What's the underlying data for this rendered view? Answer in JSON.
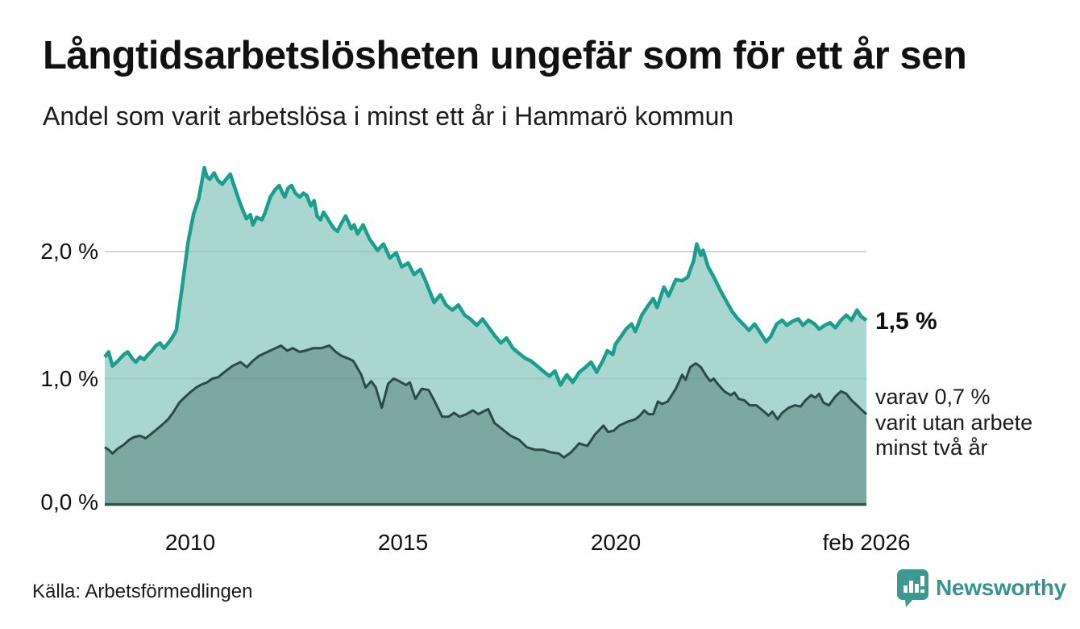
{
  "header": {
    "title": "Långtidsarbetslösheten ungefär som för ett år sen",
    "subtitle": "Andel som varit arbetslösa i minst ett år i Hammarö kommun"
  },
  "chart_data": {
    "type": "area",
    "title": "Långtidsarbetslösheten ungefär som för ett år sen",
    "subtitle": "Andel som varit arbetslösa i minst ett år i Hammarö kommun",
    "x_domain": [
      2008.0,
      2025.9
    ],
    "y_domain": [
      0,
      2.743
    ],
    "grid": "horizontal",
    "y_ticks": [
      {
        "value": 0.0,
        "label": "0,0 %"
      },
      {
        "value": 1.0,
        "label": "1,0 %"
      },
      {
        "value": 2.0,
        "label": "2,0 %"
      }
    ],
    "x_ticks": [
      {
        "value": 2010,
        "label": "2010"
      },
      {
        "value": 2015,
        "label": "2015"
      },
      {
        "value": 2020,
        "label": "2020"
      },
      {
        "value": 2025.9,
        "label": "feb 2026"
      }
    ],
    "colors": {
      "line_1yr": "#1b9e8e",
      "fill_1yr": "#a9d6d0",
      "line_2yr": "#2c4a46",
      "fill_2yr": "#7da8a2",
      "baseline": "#35514c",
      "gridline": "#e3e3e3"
    },
    "series": [
      {
        "name": "arbetslösa minst ett år",
        "last_value_pct": 1.5,
        "points": [
          [
            2008.0,
            1.17
          ],
          [
            2008.09,
            1.21
          ],
          [
            2008.18,
            1.1
          ],
          [
            2008.31,
            1.14
          ],
          [
            2008.45,
            1.19
          ],
          [
            2008.54,
            1.21
          ],
          [
            2008.64,
            1.16
          ],
          [
            2008.73,
            1.13
          ],
          [
            2008.83,
            1.17
          ],
          [
            2008.92,
            1.15
          ],
          [
            2009.02,
            1.19
          ],
          [
            2009.11,
            1.22
          ],
          [
            2009.2,
            1.26
          ],
          [
            2009.3,
            1.28
          ],
          [
            2009.39,
            1.24
          ],
          [
            2009.49,
            1.28
          ],
          [
            2009.58,
            1.32
          ],
          [
            2009.68,
            1.38
          ],
          [
            2009.83,
            1.75
          ],
          [
            2009.96,
            2.08
          ],
          [
            2010.09,
            2.3
          ],
          [
            2010.21,
            2.42
          ],
          [
            2010.28,
            2.55
          ],
          [
            2010.34,
            2.66
          ],
          [
            2010.4,
            2.59
          ],
          [
            2010.47,
            2.57
          ],
          [
            2010.57,
            2.62
          ],
          [
            2010.66,
            2.56
          ],
          [
            2010.76,
            2.53
          ],
          [
            2010.85,
            2.57
          ],
          [
            2010.95,
            2.61
          ],
          [
            2011.06,
            2.5
          ],
          [
            2011.16,
            2.4
          ],
          [
            2011.25,
            2.32
          ],
          [
            2011.33,
            2.26
          ],
          [
            2011.42,
            2.29
          ],
          [
            2011.48,
            2.21
          ],
          [
            2011.57,
            2.27
          ],
          [
            2011.69,
            2.25
          ],
          [
            2011.76,
            2.3
          ],
          [
            2011.89,
            2.43
          ],
          [
            2012.01,
            2.49
          ],
          [
            2012.1,
            2.52
          ],
          [
            2012.18,
            2.46
          ],
          [
            2012.23,
            2.43
          ],
          [
            2012.31,
            2.5
          ],
          [
            2012.39,
            2.52
          ],
          [
            2012.48,
            2.46
          ],
          [
            2012.58,
            2.43
          ],
          [
            2012.67,
            2.46
          ],
          [
            2012.75,
            2.44
          ],
          [
            2012.84,
            2.36
          ],
          [
            2012.92,
            2.4
          ],
          [
            2012.99,
            2.28
          ],
          [
            2013.07,
            2.25
          ],
          [
            2013.14,
            2.31
          ],
          [
            2013.22,
            2.27
          ],
          [
            2013.31,
            2.22
          ],
          [
            2013.39,
            2.18
          ],
          [
            2013.47,
            2.16
          ],
          [
            2013.56,
            2.22
          ],
          [
            2013.66,
            2.28
          ],
          [
            2013.73,
            2.23
          ],
          [
            2013.79,
            2.18
          ],
          [
            2013.86,
            2.21
          ],
          [
            2013.94,
            2.14
          ],
          [
            2014.07,
            2.21
          ],
          [
            2014.22,
            2.1
          ],
          [
            2014.41,
            2.01
          ],
          [
            2014.55,
            2.06
          ],
          [
            2014.7,
            1.95
          ],
          [
            2014.85,
            1.99
          ],
          [
            2014.98,
            1.88
          ],
          [
            2015.13,
            1.91
          ],
          [
            2015.27,
            1.82
          ],
          [
            2015.42,
            1.86
          ],
          [
            2015.55,
            1.76
          ],
          [
            2015.74,
            1.6
          ],
          [
            2015.89,
            1.66
          ],
          [
            2016.02,
            1.58
          ],
          [
            2016.17,
            1.54
          ],
          [
            2016.31,
            1.58
          ],
          [
            2016.46,
            1.5
          ],
          [
            2016.59,
            1.47
          ],
          [
            2016.74,
            1.42
          ],
          [
            2016.88,
            1.47
          ],
          [
            2017.03,
            1.4
          ],
          [
            2017.16,
            1.34
          ],
          [
            2017.31,
            1.28
          ],
          [
            2017.44,
            1.32
          ],
          [
            2017.59,
            1.24
          ],
          [
            2017.73,
            1.2
          ],
          [
            2017.88,
            1.16
          ],
          [
            2018.01,
            1.14
          ],
          [
            2018.16,
            1.1
          ],
          [
            2018.3,
            1.06
          ],
          [
            2018.45,
            1.02
          ],
          [
            2018.58,
            1.06
          ],
          [
            2018.71,
            0.95
          ],
          [
            2018.86,
            1.03
          ],
          [
            2019.0,
            0.97
          ],
          [
            2019.15,
            1.05
          ],
          [
            2019.3,
            1.09
          ],
          [
            2019.43,
            1.13
          ],
          [
            2019.56,
            1.05
          ],
          [
            2019.72,
            1.15
          ],
          [
            2019.81,
            1.22
          ],
          [
            2019.94,
            1.19
          ],
          [
            2020.0,
            1.27
          ],
          [
            2020.13,
            1.33
          ],
          [
            2020.25,
            1.39
          ],
          [
            2020.38,
            1.43
          ],
          [
            2020.47,
            1.37
          ],
          [
            2020.62,
            1.5
          ],
          [
            2020.76,
            1.57
          ],
          [
            2020.89,
            1.63
          ],
          [
            2020.98,
            1.56
          ],
          [
            2021.14,
            1.72
          ],
          [
            2021.25,
            1.65
          ],
          [
            2021.42,
            1.78
          ],
          [
            2021.57,
            1.77
          ],
          [
            2021.7,
            1.8
          ],
          [
            2021.84,
            1.93
          ],
          [
            2021.91,
            2.06
          ],
          [
            2022.01,
            1.97
          ],
          [
            2022.06,
            2.01
          ],
          [
            2022.18,
            1.88
          ],
          [
            2022.33,
            1.79
          ],
          [
            2022.46,
            1.7
          ],
          [
            2022.59,
            1.62
          ],
          [
            2022.74,
            1.53
          ],
          [
            2022.88,
            1.47
          ],
          [
            2023.03,
            1.42
          ],
          [
            2023.14,
            1.38
          ],
          [
            2023.27,
            1.43
          ],
          [
            2023.41,
            1.36
          ],
          [
            2023.54,
            1.29
          ],
          [
            2023.65,
            1.33
          ],
          [
            2023.79,
            1.43
          ],
          [
            2023.92,
            1.46
          ],
          [
            2024.03,
            1.42
          ],
          [
            2024.16,
            1.45
          ],
          [
            2024.3,
            1.47
          ],
          [
            2024.41,
            1.42
          ],
          [
            2024.54,
            1.46
          ],
          [
            2024.68,
            1.43
          ],
          [
            2024.79,
            1.39
          ],
          [
            2024.92,
            1.42
          ],
          [
            2025.05,
            1.44
          ],
          [
            2025.17,
            1.4
          ],
          [
            2025.3,
            1.46
          ],
          [
            2025.43,
            1.5
          ],
          [
            2025.55,
            1.46
          ],
          [
            2025.68,
            1.54
          ],
          [
            2025.77,
            1.49
          ],
          [
            2025.9,
            1.46
          ]
        ]
      },
      {
        "name": "varav utan arbete minst två år",
        "last_value_pct": 0.7,
        "points": [
          [
            2008.0,
            0.46
          ],
          [
            2008.09,
            0.44
          ],
          [
            2008.18,
            0.41
          ],
          [
            2008.31,
            0.45
          ],
          [
            2008.45,
            0.48
          ],
          [
            2008.58,
            0.52
          ],
          [
            2008.69,
            0.54
          ],
          [
            2008.83,
            0.55
          ],
          [
            2008.96,
            0.53
          ],
          [
            2009.11,
            0.57
          ],
          [
            2009.22,
            0.6
          ],
          [
            2009.36,
            0.64
          ],
          [
            2009.49,
            0.68
          ],
          [
            2009.62,
            0.74
          ],
          [
            2009.75,
            0.81
          ],
          [
            2009.87,
            0.85
          ],
          [
            2010.0,
            0.89
          ],
          [
            2010.15,
            0.93
          ],
          [
            2010.25,
            0.95
          ],
          [
            2010.4,
            0.97
          ],
          [
            2010.53,
            1.0
          ],
          [
            2010.66,
            1.01
          ],
          [
            2010.81,
            1.05
          ],
          [
            2011.0,
            1.1
          ],
          [
            2011.19,
            1.13
          ],
          [
            2011.34,
            1.09
          ],
          [
            2011.48,
            1.14
          ],
          [
            2011.63,
            1.18
          ],
          [
            2011.76,
            1.2
          ],
          [
            2011.95,
            1.23
          ],
          [
            2012.14,
            1.26
          ],
          [
            2012.29,
            1.22
          ],
          [
            2012.42,
            1.24
          ],
          [
            2012.58,
            1.21
          ],
          [
            2012.71,
            1.22
          ],
          [
            2012.9,
            1.24
          ],
          [
            2013.09,
            1.24
          ],
          [
            2013.28,
            1.26
          ],
          [
            2013.43,
            1.21
          ],
          [
            2013.56,
            1.18
          ],
          [
            2013.71,
            1.16
          ],
          [
            2013.84,
            1.14
          ],
          [
            2014.03,
            1.03
          ],
          [
            2014.13,
            0.93
          ],
          [
            2014.26,
            0.98
          ],
          [
            2014.37,
            0.93
          ],
          [
            2014.51,
            0.77
          ],
          [
            2014.66,
            0.96
          ],
          [
            2014.79,
            1.0
          ],
          [
            2014.92,
            0.98
          ],
          [
            2015.08,
            0.95
          ],
          [
            2015.17,
            0.97
          ],
          [
            2015.3,
            0.84
          ],
          [
            2015.45,
            0.92
          ],
          [
            2015.61,
            0.91
          ],
          [
            2015.74,
            0.83
          ],
          [
            2015.93,
            0.7
          ],
          [
            2016.08,
            0.7
          ],
          [
            2016.21,
            0.73
          ],
          [
            2016.34,
            0.7
          ],
          [
            2016.5,
            0.72
          ],
          [
            2016.65,
            0.75
          ],
          [
            2016.78,
            0.72
          ],
          [
            2016.89,
            0.74
          ],
          [
            2017.01,
            0.76
          ],
          [
            2017.16,
            0.65
          ],
          [
            2017.35,
            0.6
          ],
          [
            2017.54,
            0.55
          ],
          [
            2017.73,
            0.52
          ],
          [
            2017.92,
            0.46
          ],
          [
            2018.11,
            0.44
          ],
          [
            2018.3,
            0.44
          ],
          [
            2018.48,
            0.42
          ],
          [
            2018.67,
            0.41
          ],
          [
            2018.79,
            0.38
          ],
          [
            2018.96,
            0.42
          ],
          [
            2019.15,
            0.49
          ],
          [
            2019.34,
            0.47
          ],
          [
            2019.52,
            0.56
          ],
          [
            2019.72,
            0.63
          ],
          [
            2019.83,
            0.58
          ],
          [
            2019.96,
            0.59
          ],
          [
            2020.09,
            0.63
          ],
          [
            2020.28,
            0.66
          ],
          [
            2020.47,
            0.68
          ],
          [
            2020.58,
            0.71
          ],
          [
            2020.68,
            0.75
          ],
          [
            2020.78,
            0.72
          ],
          [
            2020.89,
            0.72
          ],
          [
            2021.0,
            0.82
          ],
          [
            2021.1,
            0.8
          ],
          [
            2021.23,
            0.82
          ],
          [
            2021.42,
            0.92
          ],
          [
            2021.57,
            1.03
          ],
          [
            2021.65,
            0.99
          ],
          [
            2021.76,
            1.09
          ],
          [
            2021.89,
            1.12
          ],
          [
            2022.01,
            1.09
          ],
          [
            2022.14,
            1.02
          ],
          [
            2022.23,
            0.98
          ],
          [
            2022.31,
            1.0
          ],
          [
            2022.4,
            0.96
          ],
          [
            2022.56,
            0.9
          ],
          [
            2022.71,
            0.87
          ],
          [
            2022.8,
            0.89
          ],
          [
            2022.9,
            0.84
          ],
          [
            2023.03,
            0.83
          ],
          [
            2023.16,
            0.79
          ],
          [
            2023.31,
            0.79
          ],
          [
            2023.46,
            0.75
          ],
          [
            2023.6,
            0.71
          ],
          [
            2023.69,
            0.74
          ],
          [
            2023.81,
            0.68
          ],
          [
            2023.92,
            0.73
          ],
          [
            2024.07,
            0.77
          ],
          [
            2024.22,
            0.79
          ],
          [
            2024.35,
            0.78
          ],
          [
            2024.47,
            0.83
          ],
          [
            2024.6,
            0.87
          ],
          [
            2024.7,
            0.85
          ],
          [
            2024.79,
            0.88
          ],
          [
            2024.89,
            0.81
          ],
          [
            2025.02,
            0.79
          ],
          [
            2025.17,
            0.86
          ],
          [
            2025.3,
            0.9
          ],
          [
            2025.43,
            0.88
          ],
          [
            2025.55,
            0.83
          ],
          [
            2025.68,
            0.79
          ],
          [
            2025.77,
            0.76
          ],
          [
            2025.9,
            0.72
          ]
        ]
      }
    ],
    "annotations": {
      "last_value_label": "1,5 %",
      "secondary_label_lines": [
        "varav 0,7 %",
        "varit utan arbete",
        "minst två år"
      ]
    }
  },
  "footer": {
    "source": "Källa: Arbetsförmedlingen",
    "brand": "Newsworthy",
    "brand_color": "#35948b"
  }
}
